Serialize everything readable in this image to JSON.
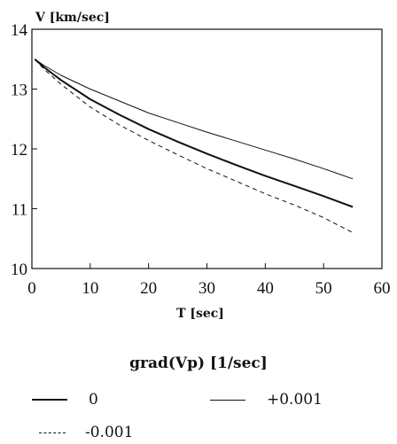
{
  "chart_data": {
    "type": "line",
    "title": "",
    "xlabel": "T [sec]",
    "ylabel": "V [km/sec]",
    "xlim": [
      0,
      60
    ],
    "ylim": [
      10,
      14
    ],
    "xticks": [
      "0",
      "10",
      "20",
      "30",
      "40",
      "50",
      "60"
    ],
    "yticks": [
      "10",
      "11",
      "12",
      "13",
      "14"
    ],
    "grid": false,
    "legend_title": "grad(Vp) [1/sec]",
    "legend_position": "bottom",
    "series": [
      {
        "name": "0",
        "style": "solid-thick",
        "x": [
          0.5,
          2,
          5,
          10,
          15,
          20,
          25,
          30,
          35,
          40,
          45,
          50,
          55
        ],
        "y": [
          13.5,
          13.37,
          13.15,
          12.83,
          12.57,
          12.33,
          12.12,
          11.92,
          11.73,
          11.55,
          11.38,
          11.21,
          11.03
        ]
      },
      {
        "name": "+0.001",
        "style": "solid-thin",
        "x": [
          0.5,
          2,
          5,
          10,
          15,
          20,
          25,
          30,
          35,
          40,
          45,
          50,
          55
        ],
        "y": [
          13.5,
          13.4,
          13.23,
          13.0,
          12.8,
          12.6,
          12.44,
          12.28,
          12.13,
          11.98,
          11.83,
          11.67,
          11.5
        ]
      },
      {
        "name": "-0.001",
        "style": "dashed",
        "x": [
          0.5,
          2,
          5,
          10,
          15,
          20,
          25,
          30,
          35,
          40,
          45,
          50,
          55
        ],
        "y": [
          13.5,
          13.34,
          13.08,
          12.7,
          12.4,
          12.14,
          11.9,
          11.67,
          11.46,
          11.25,
          11.06,
          10.85,
          10.6
        ]
      }
    ]
  }
}
